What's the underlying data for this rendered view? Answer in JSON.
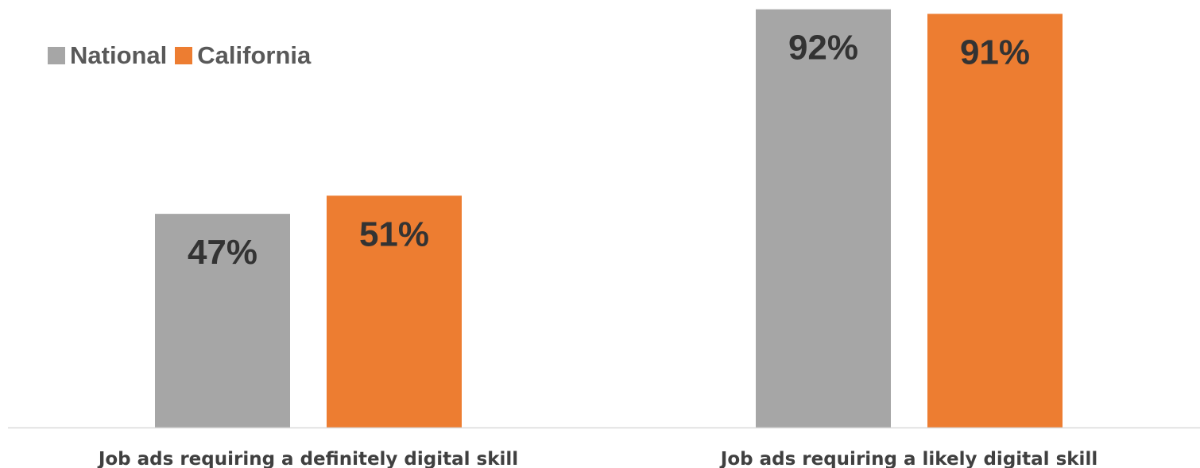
{
  "chart_data": {
    "type": "bar",
    "categories": [
      "Job ads requiring a definitely digital skill",
      "Job ads requiring a likely digital skill"
    ],
    "series": [
      {
        "name": "National",
        "values": [
          47,
          92
        ],
        "labels": [
          "47%",
          "92%"
        ],
        "color": "#a6a6a6"
      },
      {
        "name": "California",
        "values": [
          51,
          91
        ],
        "labels": [
          "51%",
          "91%"
        ],
        "color": "#ed7d31"
      }
    ],
    "title": "",
    "xlabel": "",
    "ylabel": "",
    "ylim": [
      0,
      93
    ],
    "grid": false,
    "legend_position": "top-left",
    "label_color": "#333333",
    "axis_color": "#d9d9d9"
  }
}
